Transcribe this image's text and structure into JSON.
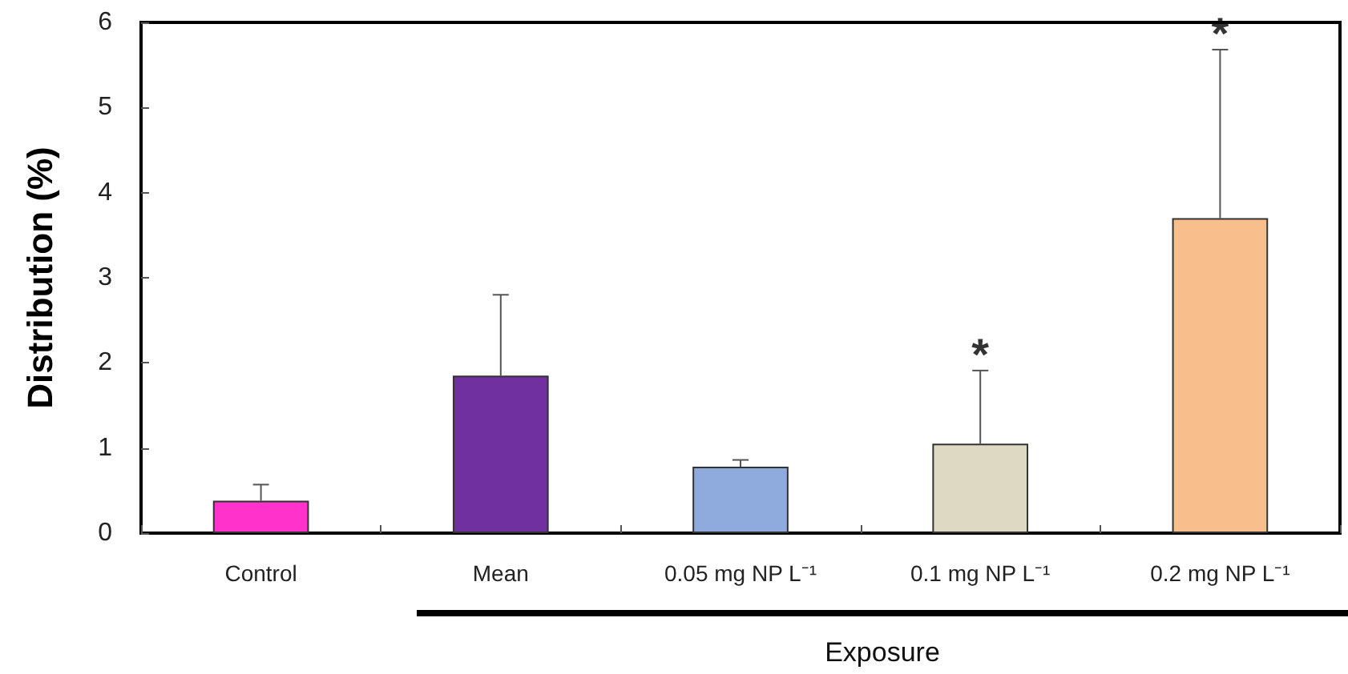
{
  "chart_data": {
    "type": "bar",
    "ylabel": "Distribution (%)",
    "xlabel": "Exposure",
    "categories": [
      "Control",
      "Mean",
      "0.05 mg NP L⁻¹",
      "0.1 mg NP L⁻¹",
      "0.2 mg NP L⁻¹"
    ],
    "values": [
      0.38,
      1.85,
      0.78,
      1.05,
      3.7
    ],
    "colors": [
      "#ff33cc",
      "#7030a0",
      "#8faadc",
      "#ddd9c3",
      "#f8bf8c"
    ],
    "errors": [
      [
        0.38,
        0.57
      ],
      [
        1.85,
        2.8
      ],
      [
        0.78,
        0.86
      ],
      [
        1.05,
        1.91
      ],
      [
        3.7,
        5.68
      ]
    ],
    "ylim": [
      0,
      6
    ],
    "yticks": [
      0,
      1,
      2,
      3,
      4,
      5,
      6
    ],
    "grid": false,
    "annotations": [
      {
        "text": "*",
        "x": "0.1 mg NP L⁻¹",
        "y": 1.91
      },
      {
        "text": "*",
        "x": "0.2 mg NP L⁻¹",
        "y": 5.68
      }
    ]
  }
}
